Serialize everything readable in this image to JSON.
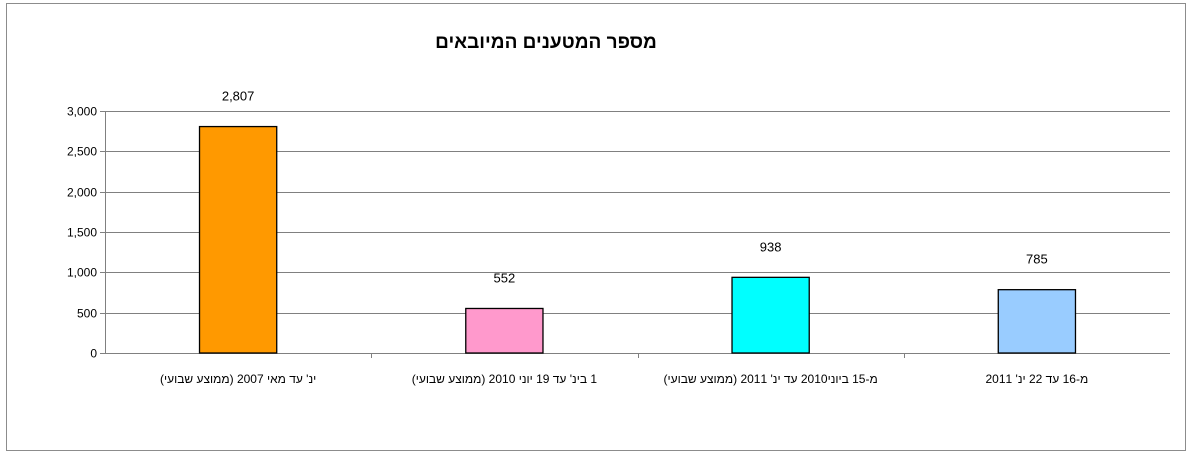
{
  "chart_data": {
    "type": "bar",
    "title": "מספר המטענים המיובאים",
    "xlabel": "",
    "ylabel": "",
    "ylim": [
      0,
      3000
    ],
    "y_ticks": [
      0,
      500,
      1000,
      1500,
      2000,
      2500,
      3000
    ],
    "y_tick_labels": [
      "0",
      "500",
      "1,000",
      "1,500",
      "2,000",
      "2,500",
      "3,000"
    ],
    "grid": true,
    "legend": "none",
    "categories": [
      "ינ' עד מאי 2007 (ממוצע שבועי)",
      "1 בינ' עד 19 יוני 2010 (ממוצע שבועי)",
      "מ-15 ביוני2010 עד ינ' 2011 (ממוצע שבועי)",
      "מ-16 עד 22 ינ' 2011"
    ],
    "values": [
      2807,
      552,
      938,
      785
    ],
    "value_labels": [
      "2,807",
      "552",
      "938",
      "785"
    ],
    "bar_colors": [
      "#ff9900",
      "#ff99cc",
      "#00ffff",
      "#99ccff"
    ]
  }
}
